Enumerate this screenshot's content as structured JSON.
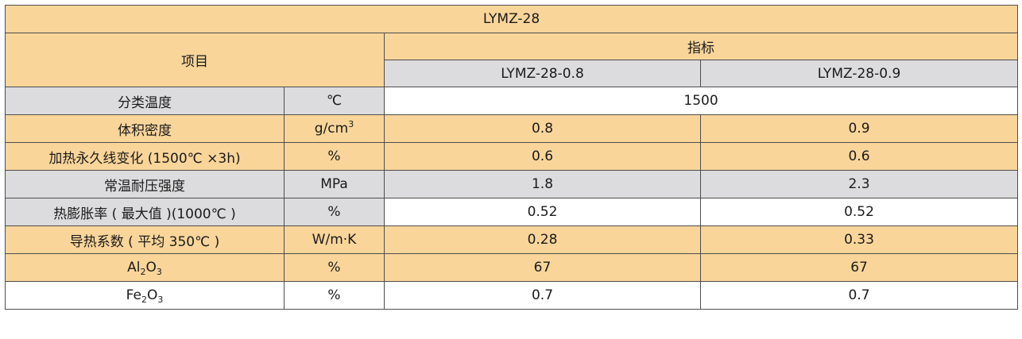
{
  "table": {
    "title": "LYMZ-28",
    "item_header": "项目",
    "index_header": "指标",
    "grade_1": "LYMZ-28-0.8",
    "grade_2": "LYMZ-28-0.9",
    "rows": [
      {
        "item": "分类温度",
        "unit": "℃",
        "value_shared": "1500"
      },
      {
        "item": "体积密度",
        "unit_base": "g/cm",
        "unit_sup": "3",
        "v1": "0.8",
        "v2": "0.9"
      },
      {
        "item": "加热永久线变化 (1500℃ ×3h)",
        "unit": "%",
        "v1": "0.6",
        "v2": "0.6"
      },
      {
        "item": "常温耐压强度",
        "unit": "MPa",
        "v1": "1.8",
        "v2": "2.3"
      },
      {
        "item": "热膨胀率 ( 最大值 )(1000℃ )",
        "unit": "%",
        "v1": "0.52",
        "v2": "0.52"
      },
      {
        "item": "导热系数 ( 平均 350℃ )",
        "unit": "W/m·K",
        "v1": "0.28",
        "v2": "0.33"
      },
      {
        "item_parts": [
          "Al",
          "2",
          "O",
          "3"
        ],
        "unit": "%",
        "v1": "67",
        "v2": "67"
      },
      {
        "item_parts": [
          "Fe",
          "2",
          "O",
          "3"
        ],
        "unit": "%",
        "v1": "0.7",
        "v2": "0.7"
      }
    ]
  }
}
